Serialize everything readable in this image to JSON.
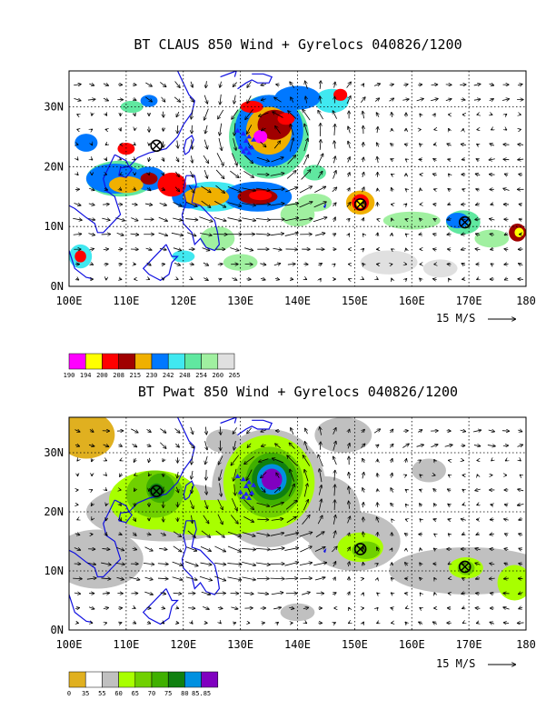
{
  "panels": [
    {
      "title": "BT CLAUS 850 Wind + Gyrelocs 040826/1200",
      "field": "CLAUS",
      "x_ticks": [
        "100E",
        "110E",
        "120E",
        "130E",
        "140E",
        "150E",
        "160E",
        "170E",
        "180"
      ],
      "y_ticks": [
        "0N",
        "10N",
        "20N",
        "30N"
      ],
      "reference_vector_label": "15 M/S",
      "colorbar": {
        "labels": [
          "190",
          "194",
          "200",
          "208",
          "215",
          "230",
          "242",
          "248",
          "254",
          "260",
          "265"
        ],
        "colors": [
          "#ff00ff",
          "#ffff00",
          "#ff0000",
          "#a00000",
          "#f0b000",
          "#0078ff",
          "#40e8f0",
          "#60e8a0",
          "#a0f0a0",
          "#e0e0e0"
        ]
      },
      "gyre_locations": [
        {
          "lon": 115.3,
          "lat": 23.5
        },
        {
          "lon": 151.0,
          "lat": 13.7
        },
        {
          "lon": 169.3,
          "lat": 10.7
        }
      ]
    },
    {
      "title": "BT Pwat 850 Wind + Gyrelocs 040826/1200",
      "field": "Pwat",
      "x_ticks": [
        "100E",
        "110E",
        "120E",
        "130E",
        "140E",
        "150E",
        "160E",
        "170E",
        "180"
      ],
      "y_ticks": [
        "0N",
        "10N",
        "20N",
        "30N"
      ],
      "reference_vector_label": "15 M/S",
      "colorbar": {
        "labels": [
          "0",
          "35",
          "55",
          "60",
          "65",
          "70",
          "75",
          "80",
          "85.85"
        ],
        "colors": [
          "#e0b020",
          "#ffffff",
          "#c0c0c0",
          "#a8ff00",
          "#70d000",
          "#40b000",
          "#108010",
          "#0090e0",
          "#8000c0"
        ]
      },
      "gyre_locations": [
        {
          "lon": 115.3,
          "lat": 23.5
        },
        {
          "lon": 151.0,
          "lat": 13.7
        },
        {
          "lon": 169.3,
          "lat": 10.7
        }
      ]
    }
  ],
  "chart_data": [
    {
      "type": "heatmap",
      "title": "BT CLAUS 850 Wind + Gyrelocs 040826/1200",
      "xlabel": "",
      "ylabel": "",
      "xlim": [
        100,
        180
      ],
      "ylim": [
        0,
        36
      ],
      "xticks": [
        100,
        110,
        120,
        130,
        140,
        150,
        160,
        170,
        180
      ],
      "yticks": [
        0,
        10,
        20,
        30
      ],
      "grid": true,
      "colorbar_levels": [
        190,
        194,
        200,
        208,
        215,
        230,
        242,
        248,
        254,
        260,
        265
      ],
      "gyre_locations": [
        [
          115.3,
          23.5
        ],
        [
          151.0,
          13.7
        ],
        [
          169.3,
          10.7
        ]
      ],
      "reference_vector_ms": 15
    },
    {
      "type": "heatmap",
      "title": "BT Pwat 850 Wind + Gyrelocs 040826/1200",
      "xlabel": "",
      "ylabel": "",
      "xlim": [
        100,
        180
      ],
      "ylim": [
        0,
        36
      ],
      "xticks": [
        100,
        110,
        120,
        130,
        140,
        150,
        160,
        170,
        180
      ],
      "yticks": [
        0,
        10,
        20,
        30
      ],
      "grid": true,
      "colorbar_levels": [
        0,
        35,
        55,
        60,
        65,
        70,
        75,
        80,
        85.85
      ],
      "gyre_locations": [
        [
          115.3,
          23.5
        ],
        [
          151.0,
          13.7
        ],
        [
          169.3,
          10.7
        ]
      ],
      "reference_vector_ms": 15
    }
  ]
}
